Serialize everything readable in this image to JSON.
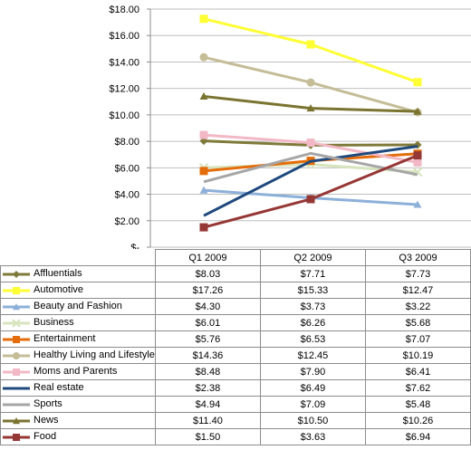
{
  "chart_data": {
    "type": "line",
    "categories": [
      "Q1 2009",
      "Q2 2009",
      "Q3 2009"
    ],
    "ylim": [
      0,
      18
    ],
    "ytick_labels": [
      "$-",
      "$2.00",
      "$4.00",
      "$6.00",
      "$8.00",
      "$10.00",
      "$12.00",
      "$14.00",
      "$16.00",
      "$18.00"
    ],
    "ytick_values": [
      0,
      2,
      4,
      6,
      8,
      10,
      12,
      14,
      16,
      18
    ],
    "grid": true,
    "legend": "data-table-below",
    "series": [
      {
        "name": "Affluentials",
        "color": "#7f7a3a",
        "marker": "diamond",
        "values": [
          8.03,
          7.71,
          7.73
        ],
        "labels": [
          "$8.03",
          "$7.71",
          "$7.73"
        ]
      },
      {
        "name": "Automotive",
        "color": "#ffff33",
        "marker": "square",
        "values": [
          17.26,
          15.33,
          12.47
        ],
        "labels": [
          "$17.26",
          "$15.33",
          "$12.47"
        ]
      },
      {
        "name": "Beauty and Fashion",
        "color": "#8db0d9",
        "marker": "triangle",
        "values": [
          4.3,
          3.73,
          3.22
        ],
        "labels": [
          "$4.30",
          "$3.73",
          "$3.22"
        ]
      },
      {
        "name": "Business",
        "color": "#d7e4bd",
        "marker": "x",
        "values": [
          6.01,
          6.26,
          5.68
        ],
        "labels": [
          "$6.01",
          "$6.26",
          "$5.68"
        ]
      },
      {
        "name": "Entertainment",
        "color": "#e46c0a",
        "marker": "square",
        "values": [
          5.76,
          6.53,
          7.07
        ],
        "labels": [
          "$5.76",
          "$6.53",
          "$7.07"
        ]
      },
      {
        "name": "Healthy Living and Lifestyle",
        "color": "#c4bd97",
        "marker": "circle",
        "values": [
          14.36,
          12.45,
          10.19
        ],
        "labels": [
          "$14.36",
          "$12.45",
          "$10.19"
        ]
      },
      {
        "name": "Moms and Parents",
        "color": "#f2b8c6",
        "marker": "square",
        "values": [
          8.48,
          7.9,
          6.41
        ],
        "labels": [
          "$8.48",
          "$7.90",
          "$6.41"
        ]
      },
      {
        "name": "Real estate",
        "color": "#1f497d",
        "marker": "none",
        "values": [
          2.38,
          6.49,
          7.62
        ],
        "labels": [
          "$2.38",
          "$6.49",
          "$7.62"
        ]
      },
      {
        "name": "Sports",
        "color": "#a6a6a6",
        "marker": "none",
        "values": [
          4.94,
          7.09,
          5.48
        ],
        "labels": [
          "$4.94",
          "$7.09",
          "$5.48"
        ]
      },
      {
        "name": "News",
        "color": "#7a7430",
        "marker": "triangle",
        "values": [
          11.4,
          10.5,
          10.26
        ],
        "labels": [
          "$11.40",
          "$10.50",
          "$10.26"
        ]
      },
      {
        "name": "Food",
        "color": "#953735",
        "marker": "square",
        "values": [
          1.5,
          3.63,
          6.94
        ],
        "labels": [
          "$1.50",
          "$3.63",
          "$6.94"
        ]
      }
    ]
  }
}
